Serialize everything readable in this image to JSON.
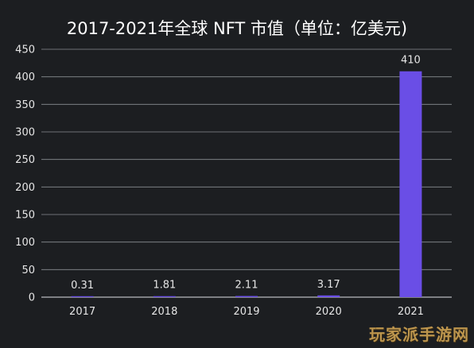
{
  "chart_data": {
    "type": "bar",
    "title": "2017-2021年全球 NFT 市值（单位：亿美元)",
    "categories": [
      "2017",
      "2018",
      "2019",
      "2020",
      "2021"
    ],
    "values": [
      0.31,
      1.81,
      2.11,
      3.17,
      410
    ],
    "value_labels": [
      "0.31",
      "1.81",
      "2.11",
      "3.17",
      "410"
    ],
    "ylim": [
      0,
      450
    ],
    "yticks": [
      0,
      50,
      100,
      150,
      200,
      250,
      300,
      350,
      400,
      450
    ],
    "grid": true,
    "bar_color": "#6a4ee6",
    "background": "#1c1e21",
    "gridline_color": "#8a8d92"
  },
  "watermark": "玩家派手游网"
}
